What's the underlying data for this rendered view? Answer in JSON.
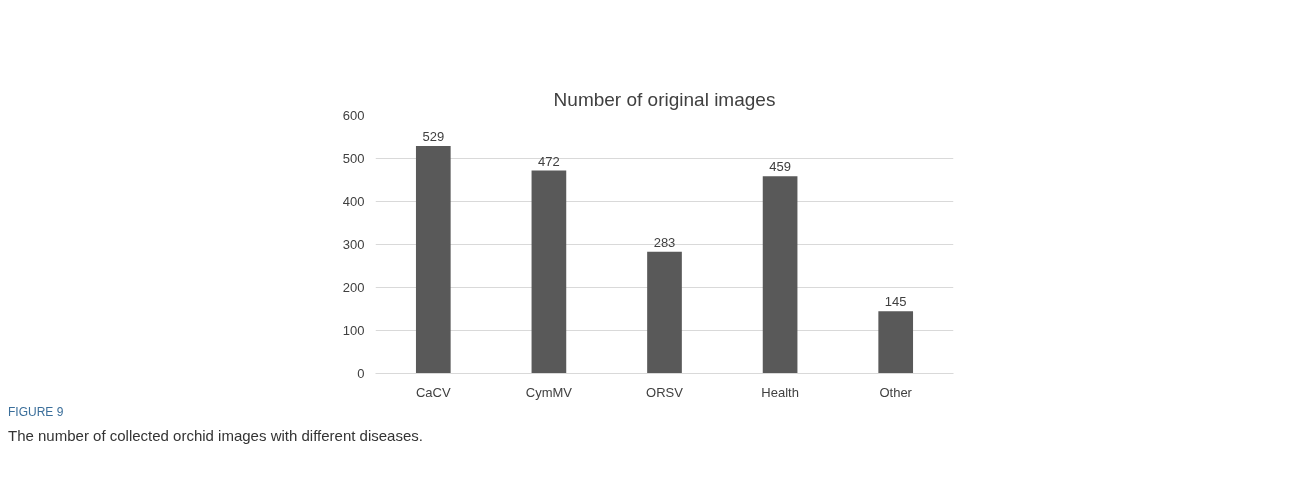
{
  "chart_data": {
    "type": "bar",
    "title": "Number of original images",
    "categories": [
      "CaCV",
      "CymMV",
      "ORSV",
      "Health",
      "Other"
    ],
    "values": [
      529,
      472,
      283,
      459,
      145
    ],
    "color": "#595959",
    "ylim": [
      0,
      600
    ],
    "yticks": [
      0,
      100,
      200,
      300,
      400,
      500,
      600
    ],
    "grid": "y",
    "data_labels": true,
    "annotations": [
      "FIGURE 9",
      "The number of collected orchid images with different diseases."
    ]
  }
}
